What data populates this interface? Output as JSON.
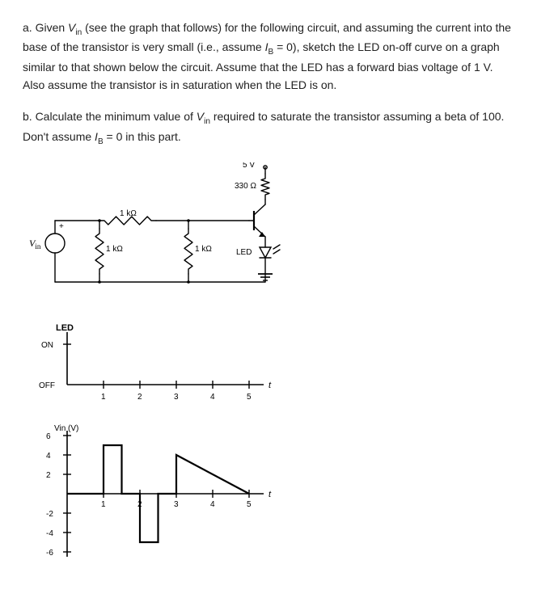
{
  "problem": {
    "a": {
      "pre": "a. Given ",
      "var1": "V",
      "sub1": "in",
      "mid1": " (see the graph that follows) for the following circuit, and assuming the current into the base of the transistor is very small (i.e., assume ",
      "var2": "I",
      "sub2": "B",
      "mid2": " = 0), sketch the LED on-off curve on a graph similar to that shown below the circuit. Assume that the LED has a forward bias voltage of 1 V. Also assume the transistor is in saturation when the LED is on."
    },
    "b": {
      "pre": "b. Calculate the minimum value of ",
      "var1": "V",
      "sub1": "in",
      "mid1": " required to saturate the transistor assuming a beta of 100. Don't assume ",
      "var2": "I",
      "sub2": "B",
      "mid2": " = 0 in this part."
    }
  },
  "circuit": {
    "supply_label": "5 V",
    "r_collector": "330 Ω",
    "r_series_top": "1 kΩ",
    "r_shunt_left": "1 kΩ",
    "r_shunt_right": "1 kΩ",
    "vin_label": "V",
    "vin_sub": "in",
    "vin_polarity": "+",
    "led_label": "LED",
    "stroke": "#000000",
    "stroke_width": 1.4,
    "font_size": 12
  },
  "led_graph": {
    "y_label": "LED",
    "y_levels": [
      "ON",
      "OFF"
    ],
    "x_label": "t",
    "x_ticks": [
      1,
      2,
      3,
      4,
      5
    ],
    "stroke": "#000000",
    "font_size": 12
  },
  "vin_graph": {
    "y_label": "Vin (V)",
    "y_ticks": [
      6,
      4,
      2,
      -2,
      -4,
      -6
    ],
    "x_label": "t",
    "x_ticks": [
      1,
      2,
      3,
      4,
      5
    ],
    "stroke": "#000000",
    "waveform_stroke_width": 2.2,
    "font_size": 12,
    "segments": [
      {
        "t0": 0,
        "v0": 0,
        "t1": 1,
        "v1": 0
      },
      {
        "t0": 1,
        "v0": 0,
        "t1": 1,
        "v1": 5
      },
      {
        "t0": 1,
        "v0": 5,
        "t1": 1.5,
        "v1": 5
      },
      {
        "t0": 1.5,
        "v0": 5,
        "t1": 1.5,
        "v1": 0
      },
      {
        "t0": 1.5,
        "v0": 0,
        "t1": 2,
        "v1": 0
      },
      {
        "t0": 2,
        "v0": 0,
        "t1": 2,
        "v1": -5
      },
      {
        "t0": 2,
        "v0": -5,
        "t1": 2.5,
        "v1": -5
      },
      {
        "t0": 2.5,
        "v0": -5,
        "t1": 2.5,
        "v1": 0
      },
      {
        "t0": 2.5,
        "v0": 0,
        "t1": 3,
        "v1": 0
      },
      {
        "t0": 3,
        "v0": 0,
        "t1": 3,
        "v1": 4
      },
      {
        "t0": 3,
        "v0": 4,
        "t1": 5,
        "v1": 0
      }
    ]
  }
}
